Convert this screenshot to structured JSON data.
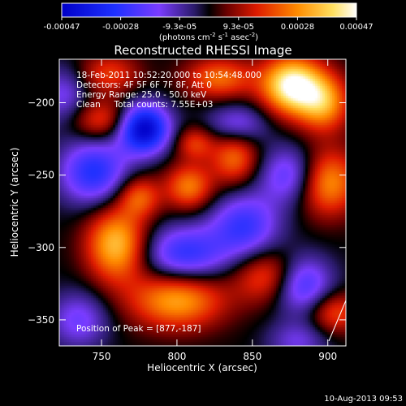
{
  "colorbar": {
    "tick_labels": [
      "-0.00047",
      "-0.00028",
      "-9.3e-05",
      "9.3e-05",
      "0.00028",
      "0.00047"
    ],
    "unit_prefix": "(photons cm",
    "unit_exp1": "-2",
    "unit_mid": " s",
    "unit_exp2": "-1",
    "unit_mid2": " asec",
    "unit_exp3": "-2",
    "unit_suffix": ")"
  },
  "annotations": {
    "time_range": "18-Feb-2011 10:52:20.000 to 10:54:48.000",
    "detectors": "Detectors: 4F 5F 6F 7F 8F, Att 0",
    "energy_range": "Energy Range: 25.0 - 50.0 keV",
    "clean_counts": "Clean     Total counts: 7.55E+03",
    "peak_position": "Position of Peak = [877,-187]"
  },
  "footer_date": "10-Aug-2013 09:53",
  "chart_data": {
    "type": "heatmap",
    "title": "Reconstructed RHESSI Image",
    "xlabel": "Heliocentric X (arcsec)",
    "ylabel": "Heliocentric Y (arcsec)",
    "xlim": [
      722,
      912
    ],
    "ylim": [
      -368,
      -170
    ],
    "x_ticks": [
      750,
      800,
      850,
      900
    ],
    "y_ticks": [
      -200,
      -250,
      -300,
      -350
    ],
    "x_tick_labels": [
      "750",
      "800",
      "850",
      "900"
    ],
    "y_tick_labels": [
      "−200",
      "−250",
      "−300",
      "−350"
    ],
    "color_range": [
      -0.00047,
      0.00047
    ],
    "peak": [
      877,
      -187
    ],
    "blobs": [
      {
        "x": 876,
        "y": -188,
        "sx": 14,
        "sy": 14,
        "a": 0.00047
      },
      {
        "x": 897,
        "y": -200,
        "sx": 12,
        "sy": 14,
        "a": 0.0003
      },
      {
        "x": 828,
        "y": -183,
        "sx": 16,
        "sy": 10,
        "a": 0.00024
      },
      {
        "x": 755,
        "y": -180,
        "sx": 14,
        "sy": 10,
        "a": 0.00018
      },
      {
        "x": 750,
        "y": -212,
        "sx": 14,
        "sy": 10,
        "a": 0.0002
      },
      {
        "x": 760,
        "y": -298,
        "sx": 14,
        "sy": 18,
        "a": 0.00036
      },
      {
        "x": 775,
        "y": -265,
        "sx": 10,
        "sy": 10,
        "a": 0.00022
      },
      {
        "x": 808,
        "y": -258,
        "sx": 11,
        "sy": 11,
        "a": 0.00026
      },
      {
        "x": 812,
        "y": -228,
        "sx": 9,
        "sy": 8,
        "a": 0.00018
      },
      {
        "x": 838,
        "y": -238,
        "sx": 11,
        "sy": 13,
        "a": 0.00024
      },
      {
        "x": 900,
        "y": -255,
        "sx": 14,
        "sy": 16,
        "a": 0.0003
      },
      {
        "x": 862,
        "y": -320,
        "sx": 16,
        "sy": 13,
        "a": 0.00024
      },
      {
        "x": 800,
        "y": -336,
        "sx": 22,
        "sy": 14,
        "a": 0.00032
      },
      {
        "x": 905,
        "y": -345,
        "sx": 12,
        "sy": 10,
        "a": 0.0002
      },
      {
        "x": 778,
        "y": -218,
        "sx": 12,
        "sy": 12,
        "a": -0.00047
      },
      {
        "x": 745,
        "y": -248,
        "sx": 16,
        "sy": 16,
        "a": -0.0003
      },
      {
        "x": 805,
        "y": -305,
        "sx": 20,
        "sy": 14,
        "a": -0.00028
      },
      {
        "x": 845,
        "y": -285,
        "sx": 16,
        "sy": 16,
        "a": -0.00026
      },
      {
        "x": 882,
        "y": -325,
        "sx": 14,
        "sy": 14,
        "a": -0.0003
      },
      {
        "x": 875,
        "y": -250,
        "sx": 14,
        "sy": 14,
        "a": -0.00022
      },
      {
        "x": 840,
        "y": -215,
        "sx": 14,
        "sy": 10,
        "a": -0.00018
      },
      {
        "x": 735,
        "y": -350,
        "sx": 14,
        "sy": 14,
        "a": -0.00018
      },
      {
        "x": 880,
        "y": -365,
        "sx": 14,
        "sy": 10,
        "a": -0.00014
      },
      {
        "x": 725,
        "y": -195,
        "sx": 12,
        "sy": 14,
        "a": -0.00016
      }
    ]
  }
}
